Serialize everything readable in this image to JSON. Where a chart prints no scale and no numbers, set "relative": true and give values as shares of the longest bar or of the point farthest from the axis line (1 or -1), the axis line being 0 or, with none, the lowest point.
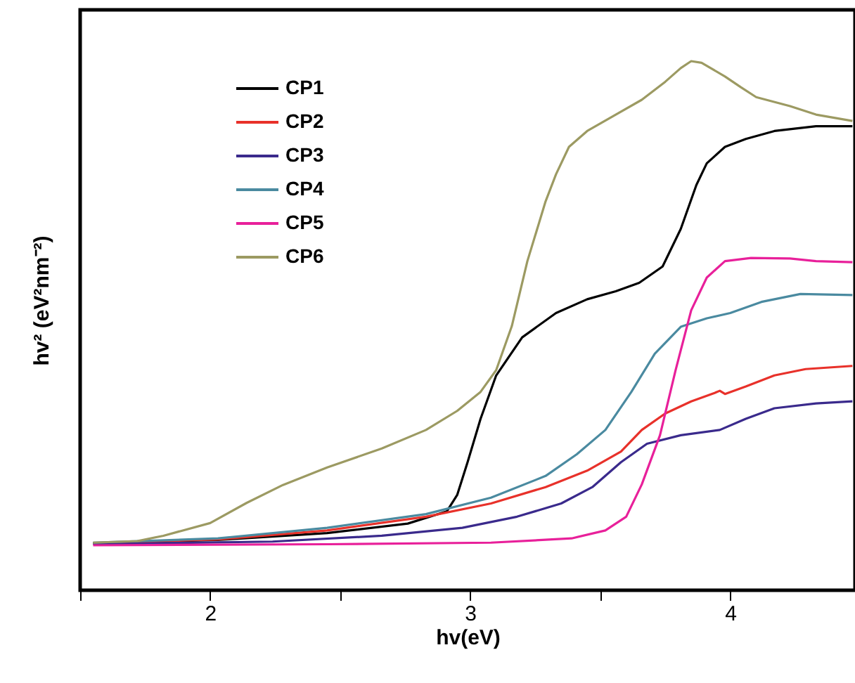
{
  "chart_data": {
    "type": "line",
    "xlabel": "hv(eV)",
    "ylabel": "hv² (eV²nm⁻²)",
    "relative": true,
    "xlim": [
      1.5,
      4.48
    ],
    "xticks": [
      {
        "value": 1.5,
        "label": null
      },
      2,
      {
        "value": 2.5,
        "label": null
      },
      3,
      {
        "value": 3.5,
        "label": null
      },
      4
    ],
    "legend": "top left",
    "grid": false,
    "line_style": "solid",
    "marker": "none",
    "series": [
      {
        "name": "CP1",
        "color": "#000000",
        "x": [
          1.55,
          2.03,
          2.45,
          2.76,
          2.91,
          2.95,
          2.99,
          3.04,
          3.1,
          3.2,
          3.33,
          3.45,
          3.56,
          3.65,
          3.74,
          3.81,
          3.87,
          3.91,
          3.98,
          4.06,
          4.17,
          4.33,
          4.47
        ],
        "values": [
          0.089,
          0.095,
          0.108,
          0.126,
          0.149,
          0.18,
          0.242,
          0.324,
          0.406,
          0.478,
          0.524,
          0.55,
          0.565,
          0.581,
          0.612,
          0.683,
          0.766,
          0.807,
          0.838,
          0.853,
          0.868,
          0.877,
          0.877
        ]
      },
      {
        "name": "CP2",
        "color": "#e8312a",
        "x": [
          1.55,
          2.03,
          2.45,
          2.83,
          3.08,
          3.29,
          3.45,
          3.58,
          3.66,
          3.75,
          3.85,
          3.94,
          3.96,
          3.98,
          4.06,
          4.17,
          4.29,
          4.47
        ],
        "values": [
          0.089,
          0.096,
          0.113,
          0.139,
          0.164,
          0.195,
          0.226,
          0.262,
          0.303,
          0.334,
          0.357,
          0.373,
          0.377,
          0.371,
          0.385,
          0.406,
          0.418,
          0.424
        ]
      },
      {
        "name": "CP3",
        "color": "#3a2a8c",
        "x": [
          1.55,
          2.24,
          2.66,
          2.97,
          3.18,
          3.35,
          3.47,
          3.58,
          3.68,
          3.81,
          3.96,
          4.06,
          4.17,
          4.33,
          4.47
        ],
        "values": [
          0.087,
          0.092,
          0.103,
          0.118,
          0.139,
          0.164,
          0.195,
          0.242,
          0.277,
          0.293,
          0.303,
          0.324,
          0.344,
          0.353,
          0.357
        ]
      },
      {
        "name": "CP4",
        "color": "#4a8aa0",
        "x": [
          1.55,
          2.03,
          2.45,
          2.83,
          3.08,
          3.29,
          3.41,
          3.52,
          3.62,
          3.71,
          3.81,
          3.91,
          4.0,
          4.12,
          4.27,
          4.47
        ],
        "values": [
          0.09,
          0.098,
          0.118,
          0.144,
          0.175,
          0.216,
          0.257,
          0.303,
          0.375,
          0.447,
          0.498,
          0.514,
          0.524,
          0.545,
          0.56,
          0.558
        ]
      },
      {
        "name": "CP5",
        "color": "#e8209a",
        "x": [
          1.55,
          2.45,
          3.08,
          3.39,
          3.52,
          3.6,
          3.66,
          3.73,
          3.79,
          3.85,
          3.91,
          3.98,
          4.08,
          4.23,
          4.33,
          4.47
        ],
        "values": [
          0.085,
          0.087,
          0.09,
          0.098,
          0.113,
          0.139,
          0.2,
          0.293,
          0.416,
          0.529,
          0.591,
          0.622,
          0.628,
          0.627,
          0.622,
          0.62
        ]
      },
      {
        "name": "CP6",
        "color": "#9c9a62",
        "x": [
          1.55,
          1.72,
          1.82,
          2.0,
          2.14,
          2.28,
          2.45,
          2.66,
          2.83,
          2.95,
          3.04,
          3.1,
          3.16,
          3.22,
          3.29,
          3.33,
          3.38,
          3.45,
          3.56,
          3.66,
          3.75,
          3.81,
          3.85,
          3.89,
          3.98,
          4.04,
          4.1,
          4.23,
          4.33,
          4.47
        ],
        "values": [
          0.09,
          0.093,
          0.103,
          0.127,
          0.165,
          0.199,
          0.232,
          0.268,
          0.303,
          0.339,
          0.375,
          0.416,
          0.499,
          0.622,
          0.735,
          0.786,
          0.838,
          0.868,
          0.899,
          0.927,
          0.961,
          0.987,
          1.0,
          0.997,
          0.971,
          0.951,
          0.932,
          0.915,
          0.899,
          0.887
        ]
      }
    ]
  }
}
